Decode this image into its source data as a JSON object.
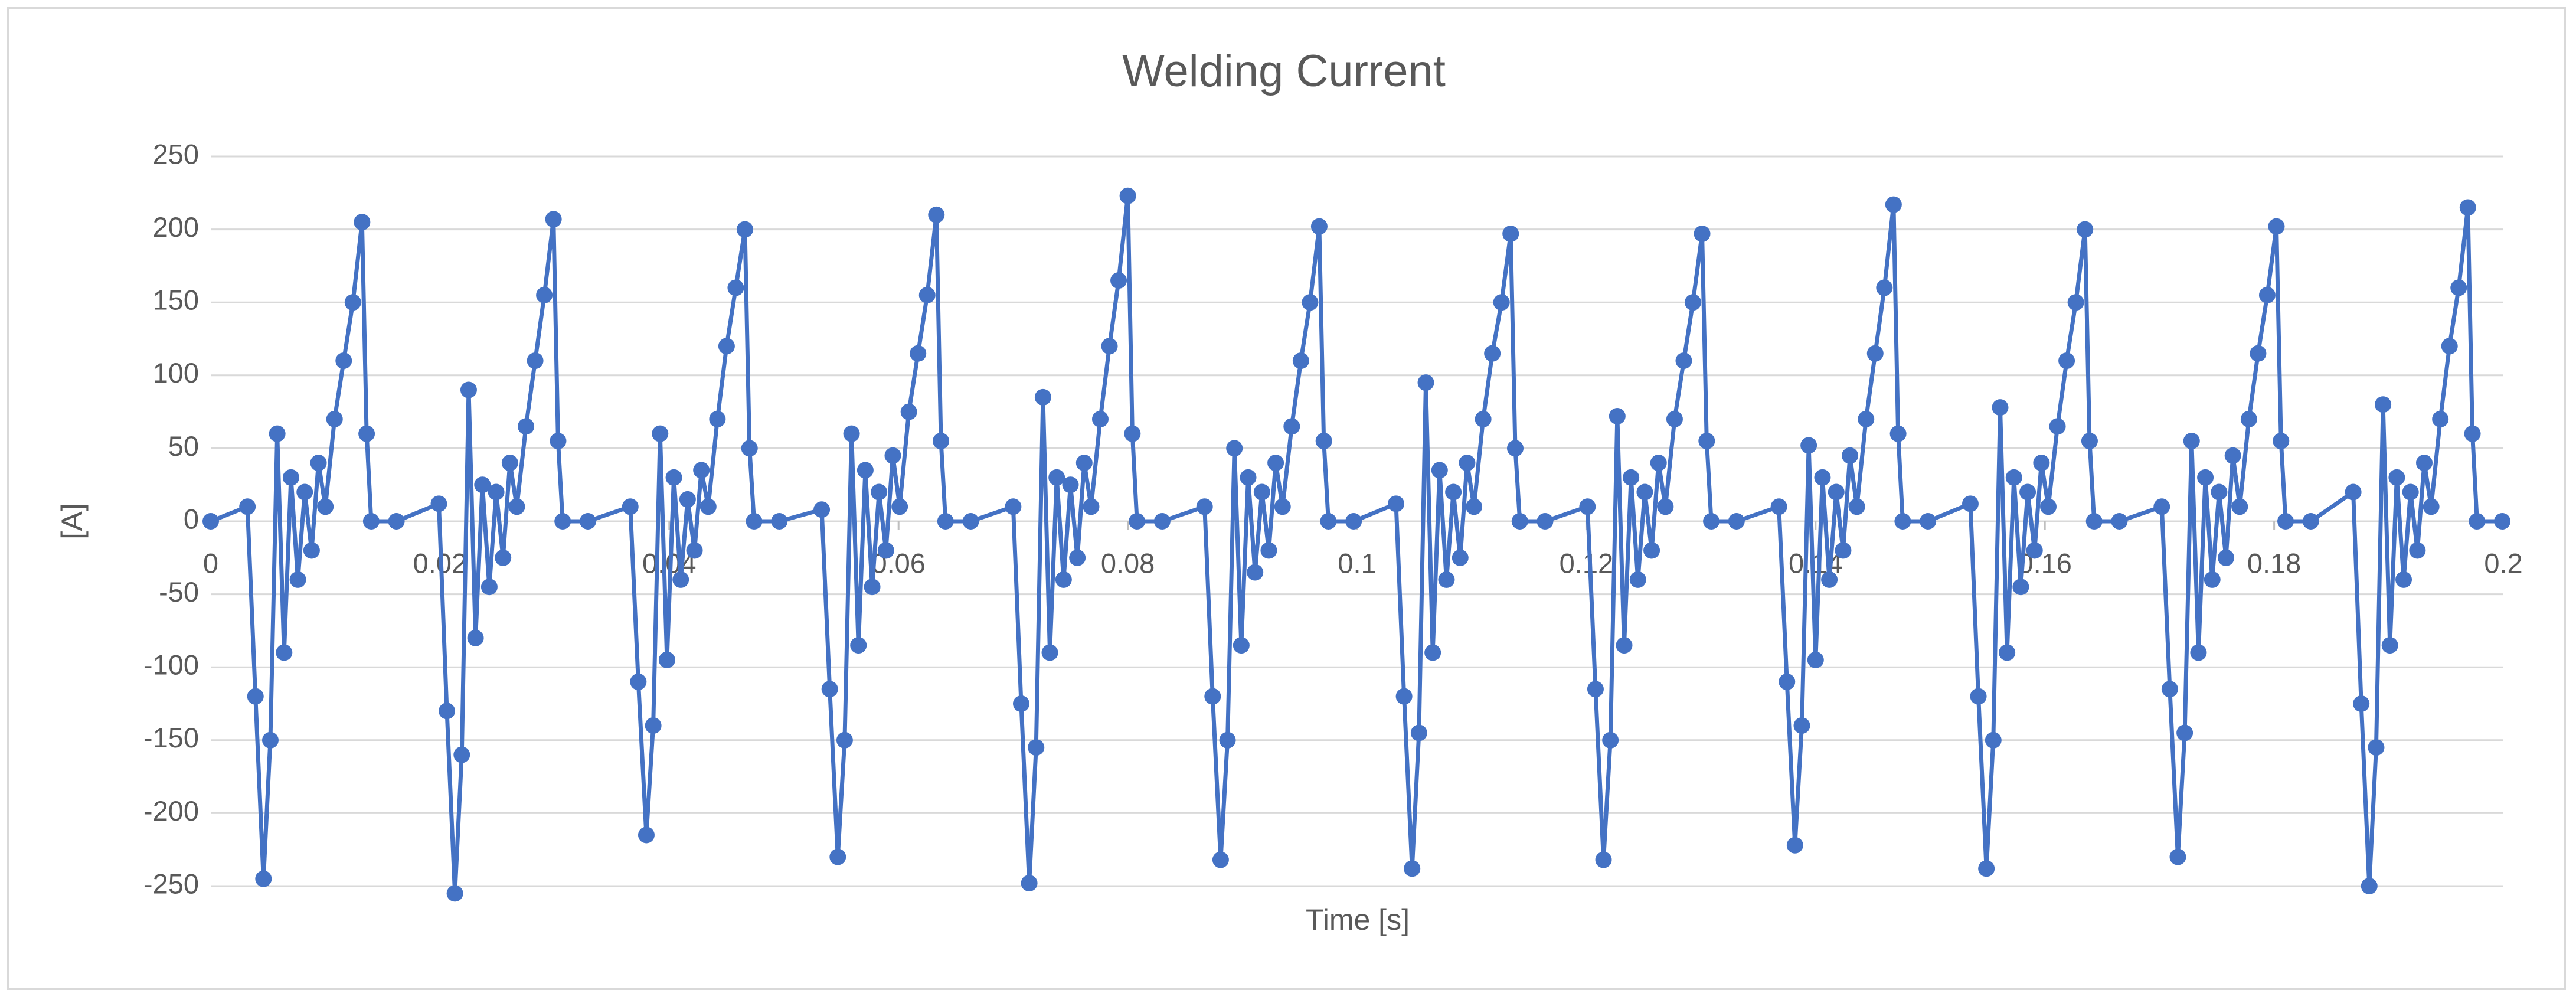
{
  "chart_data": {
    "type": "line",
    "title": "Welding Current",
    "x_label": "Time [s]",
    "y_label": "[A]",
    "color": "#4472c4",
    "grid": true,
    "markers": true,
    "xlim": [
      0,
      0.2
    ],
    "xticks": [
      0,
      0.02,
      0.04,
      0.06,
      0.08,
      0.1,
      0.12,
      0.14,
      0.16,
      0.18,
      0.2
    ],
    "ylim": [
      -250,
      250
    ],
    "yticks": [
      -250,
      -200,
      -150,
      -100,
      -50,
      0,
      50,
      100,
      150,
      200,
      250
    ],
    "x": [
      0,
      0.0032,
      0.0039,
      0.0046,
      0.0052,
      0.0058,
      0.0064,
      0.007,
      0.0076,
      0.0082,
      0.0088,
      0.0094,
      0.01,
      0.0108,
      0.0116,
      0.0124,
      0.0132,
      0.0136,
      0.014,
      0.0162,
      0.0199,
      0.0206,
      0.0213,
      0.0219,
      0.0225,
      0.0231,
      0.0237,
      0.0243,
      0.0249,
      0.0255,
      0.0261,
      0.0267,
      0.0275,
      0.0283,
      0.0291,
      0.0299,
      0.0303,
      0.0307,
      0.0329,
      0.0366,
      0.0373,
      0.038,
      0.0386,
      0.0392,
      0.0398,
      0.0404,
      0.041,
      0.0416,
      0.0422,
      0.0428,
      0.0434,
      0.0442,
      0.045,
      0.0458,
      0.0466,
      0.047,
      0.0474,
      0.0496,
      0.0533,
      0.054,
      0.0547,
      0.0553,
      0.0559,
      0.0565,
      0.0571,
      0.0577,
      0.0583,
      0.0589,
      0.0595,
      0.0601,
      0.0609,
      0.0617,
      0.0625,
      0.0633,
      0.0637,
      0.0641,
      0.0663,
      0.07,
      0.0707,
      0.0714,
      0.072,
      0.0726,
      0.0732,
      0.0738,
      0.0744,
      0.075,
      0.0756,
      0.0762,
      0.0768,
      0.0776,
      0.0784,
      0.0792,
      0.08,
      0.0804,
      0.0808,
      0.083,
      0.0867,
      0.0874,
      0.0881,
      0.0887,
      0.0893,
      0.0899,
      0.0905,
      0.0911,
      0.0917,
      0.0923,
      0.0929,
      0.0935,
      0.0943,
      0.0951,
      0.0959,
      0.0967,
      0.0971,
      0.0975,
      0.0997,
      0.1034,
      0.1041,
      0.1048,
      0.1054,
      0.106,
      0.1066,
      0.1072,
      0.1078,
      0.1084,
      0.109,
      0.1096,
      0.1102,
      0.111,
      0.1118,
      0.1126,
      0.1134,
      0.1138,
      0.1142,
      0.1164,
      0.1201,
      0.1208,
      0.1215,
      0.1221,
      0.1227,
      0.1233,
      0.1239,
      0.1245,
      0.1251,
      0.1257,
      0.1263,
      0.1269,
      0.1277,
      0.1285,
      0.1293,
      0.1301,
      0.1305,
      0.1309,
      0.1331,
      0.1368,
      0.1375,
      0.1382,
      0.1388,
      0.1394,
      0.14,
      0.1406,
      0.1412,
      0.1418,
      0.1424,
      0.143,
      0.1436,
      0.1444,
      0.1452,
      0.146,
      0.1468,
      0.1472,
      0.1476,
      0.1498,
      0.1535,
      0.1542,
      0.1549,
      0.1555,
      0.1561,
      0.1567,
      0.1573,
      0.1579,
      0.1585,
      0.1591,
      0.1597,
      0.1603,
      0.1611,
      0.1619,
      0.1627,
      0.1635,
      0.1639,
      0.1643,
      0.1665,
      0.1702,
      0.1709,
      0.1716,
      0.1722,
      0.1728,
      0.1734,
      0.174,
      0.1746,
      0.1752,
      0.1758,
      0.1764,
      0.177,
      0.1778,
      0.1786,
      0.1794,
      0.1802,
      0.1806,
      0.181,
      0.1832,
      0.1869,
      0.1876,
      0.1883,
      0.1889,
      0.1895,
      0.1901,
      0.1907,
      0.1913,
      0.1919,
      0.1925,
      0.1931,
      0.1937,
      0.1945,
      0.1953,
      0.1961,
      0.1969,
      0.1973,
      0.1977,
      0.1999
    ],
    "values": [
      0,
      10,
      -120,
      -245,
      -150,
      60,
      -90,
      30,
      -40,
      20,
      -20,
      40,
      10,
      70,
      110,
      150,
      205,
      60,
      0,
      0,
      12,
      -130,
      -255,
      -160,
      90,
      -80,
      25,
      -45,
      20,
      -25,
      40,
      10,
      65,
      110,
      155,
      207,
      55,
      0,
      0,
      10,
      -110,
      -215,
      -140,
      60,
      -95,
      30,
      -40,
      15,
      -20,
      35,
      10,
      70,
      120,
      160,
      200,
      50,
      0,
      0,
      8,
      -115,
      -230,
      -150,
      60,
      -85,
      35,
      -45,
      20,
      -20,
      45,
      10,
      75,
      115,
      155,
      210,
      55,
      0,
      0,
      10,
      -125,
      -248,
      -155,
      85,
      -90,
      30,
      -40,
      25,
      -25,
      40,
      10,
      70,
      120,
      165,
      223,
      60,
      0,
      0,
      10,
      -120,
      -232,
      -150,
      50,
      -85,
      30,
      -35,
      20,
      -20,
      40,
      10,
      65,
      110,
      150,
      202,
      55,
      0,
      0,
      12,
      -120,
      -238,
      -145,
      95,
      -90,
      35,
      -40,
      20,
      -25,
      40,
      10,
      70,
      115,
      150,
      197,
      50,
      0,
      0,
      10,
      -115,
      -232,
      -150,
      72,
      -85,
      30,
      -40,
      20,
      -20,
      40,
      10,
      70,
      110,
      150,
      197,
      55,
      0,
      0,
      10,
      -110,
      -222,
      -140,
      52,
      -95,
      30,
      -40,
      20,
      -20,
      45,
      10,
      70,
      115,
      160,
      217,
      60,
      0,
      0,
      12,
      -120,
      -238,
      -150,
      78,
      -90,
      30,
      -45,
      20,
      -20,
      40,
      10,
      65,
      110,
      150,
      200,
      55,
      0,
      0,
      10,
      -115,
      -230,
      -145,
      55,
      -90,
      30,
      -40,
      20,
      -25,
      45,
      10,
      70,
      115,
      155,
      202,
      55,
      0,
      0,
      20,
      -125,
      -250,
      -155,
      80,
      -85,
      30,
      -40,
      20,
      -20,
      40,
      10,
      70,
      120,
      160,
      215,
      60,
      0,
      0
    ]
  }
}
